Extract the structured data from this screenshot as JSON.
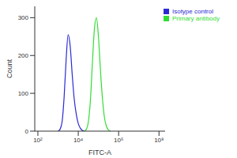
{
  "chart_data": {
    "type": "line",
    "x_label": "FITC-A",
    "y_label": "Count",
    "log": "x",
    "grid": false,
    "legend": "upper right",
    "xlim": [
      70,
      200000000
    ],
    "xticks": [
      {
        "value": 100,
        "label": "10²"
      },
      {
        "value": 10000,
        "label": "10⁴"
      },
      {
        "value": 1000000,
        "label": "10⁶"
      },
      {
        "value": 100000000,
        "label": "10⁸"
      }
    ],
    "ylim": [
      0,
      330
    ],
    "yticks": [
      0,
      100,
      200,
      300
    ],
    "x": [
      1000,
      1259,
      1585,
      1995,
      2512,
      3162,
      3981,
      5012,
      6310,
      7943,
      10000,
      12589,
      15849,
      19953,
      25119,
      31623,
      39811,
      50119,
      63096,
      79433,
      100000,
      125893,
      158489,
      199526,
      251189,
      316228,
      398107
    ],
    "series": [
      {
        "name": "Isotype control",
        "color": "#2b2bd6",
        "values": [
          0,
          5,
          25,
          90,
          190,
          255,
          225,
          150,
          85,
          45,
          20,
          8,
          2,
          0,
          null,
          null,
          null,
          null,
          null,
          null,
          null,
          null,
          null,
          null,
          null,
          null,
          null
        ]
      },
      {
        "name": "Primary antibody",
        "color": "#33dd33",
        "values": [
          null,
          null,
          null,
          null,
          null,
          null,
          null,
          null,
          null,
          null,
          null,
          null,
          null,
          0,
          5,
          25,
          80,
          180,
          270,
          300,
          250,
          160,
          85,
          35,
          12,
          3,
          0
        ]
      }
    ]
  }
}
